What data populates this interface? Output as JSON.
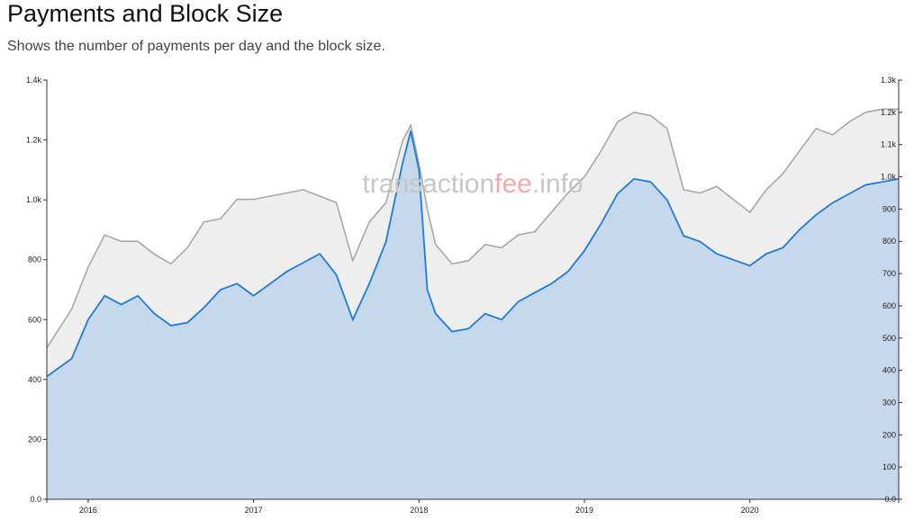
{
  "header": {
    "title": "Payments and Block Size",
    "subtitle": "Shows the number of payments per day and the block size."
  },
  "watermark": {
    "part1": "transaction",
    "part2": "fee",
    "part3": ".info"
  },
  "colors": {
    "payments_line": "#1f7bd6",
    "payments_fill": "#c6d8eb",
    "blocksize_line": "#a8a8a8",
    "blocksize_fill": "#eeeeee",
    "watermark_gray": "#c7c7c7",
    "watermark_accent": "#f3a8ae"
  },
  "chart_data": {
    "type": "area",
    "x_ticks": [
      "2016",
      "2017",
      "2018",
      "2019",
      "2020"
    ],
    "y_left_ticks": [
      "0.0",
      "200",
      "400",
      "600",
      "800",
      "1.0k",
      "1.2k",
      "1.4k"
    ],
    "y_right_ticks": [
      "0.0",
      "100",
      "200",
      "300",
      "400",
      "500",
      "600",
      "700",
      "800",
      "900",
      "1.0k",
      "1.1k",
      "1.2k",
      "1.3k"
    ],
    "ylim_left": [
      0,
      1400
    ],
    "ylim_right": [
      0,
      1300
    ],
    "x": [
      2015.75,
      2015.9,
      2016.0,
      2016.1,
      2016.2,
      2016.3,
      2016.4,
      2016.5,
      2016.6,
      2016.7,
      2016.8,
      2016.9,
      2017.0,
      2017.1,
      2017.2,
      2017.3,
      2017.4,
      2017.5,
      2017.6,
      2017.7,
      2017.8,
      2017.9,
      2017.95,
      2018.0,
      2018.05,
      2018.1,
      2018.2,
      2018.3,
      2018.4,
      2018.5,
      2018.6,
      2018.7,
      2018.8,
      2018.9,
      2019.0,
      2019.1,
      2019.2,
      2019.3,
      2019.4,
      2019.5,
      2019.6,
      2019.7,
      2019.8,
      2019.9,
      2020.0,
      2020.1,
      2020.2,
      2020.3,
      2020.4,
      2020.5,
      2020.6,
      2020.7,
      2020.8,
      2020.9
    ],
    "series": [
      {
        "axis": "left",
        "values": [
          410,
          470,
          600,
          680,
          650,
          680,
          620,
          580,
          590,
          640,
          700,
          720,
          680,
          720,
          760,
          790,
          820,
          750,
          600,
          720,
          860,
          1120,
          1230,
          1100,
          700,
          620,
          560,
          570,
          620,
          600,
          660,
          690,
          720,
          760,
          830,
          920,
          1020,
          1070,
          1060,
          1000,
          880,
          860,
          820,
          800,
          780,
          820,
          840,
          900,
          950,
          990,
          1020,
          1050,
          1060,
          1070
        ]
      },
      {
        "axis": "right",
        "values": [
          470,
          590,
          720,
          820,
          800,
          800,
          760,
          730,
          780,
          860,
          870,
          930,
          930,
          940,
          950,
          960,
          940,
          920,
          740,
          860,
          920,
          1110,
          1160,
          1040,
          900,
          790,
          730,
          740,
          790,
          780,
          820,
          830,
          890,
          950,
          1000,
          1080,
          1170,
          1200,
          1190,
          1150,
          960,
          950,
          970,
          930,
          890,
          960,
          1010,
          1080,
          1150,
          1130,
          1170,
          1200,
          1210,
          1210
        ]
      }
    ]
  }
}
